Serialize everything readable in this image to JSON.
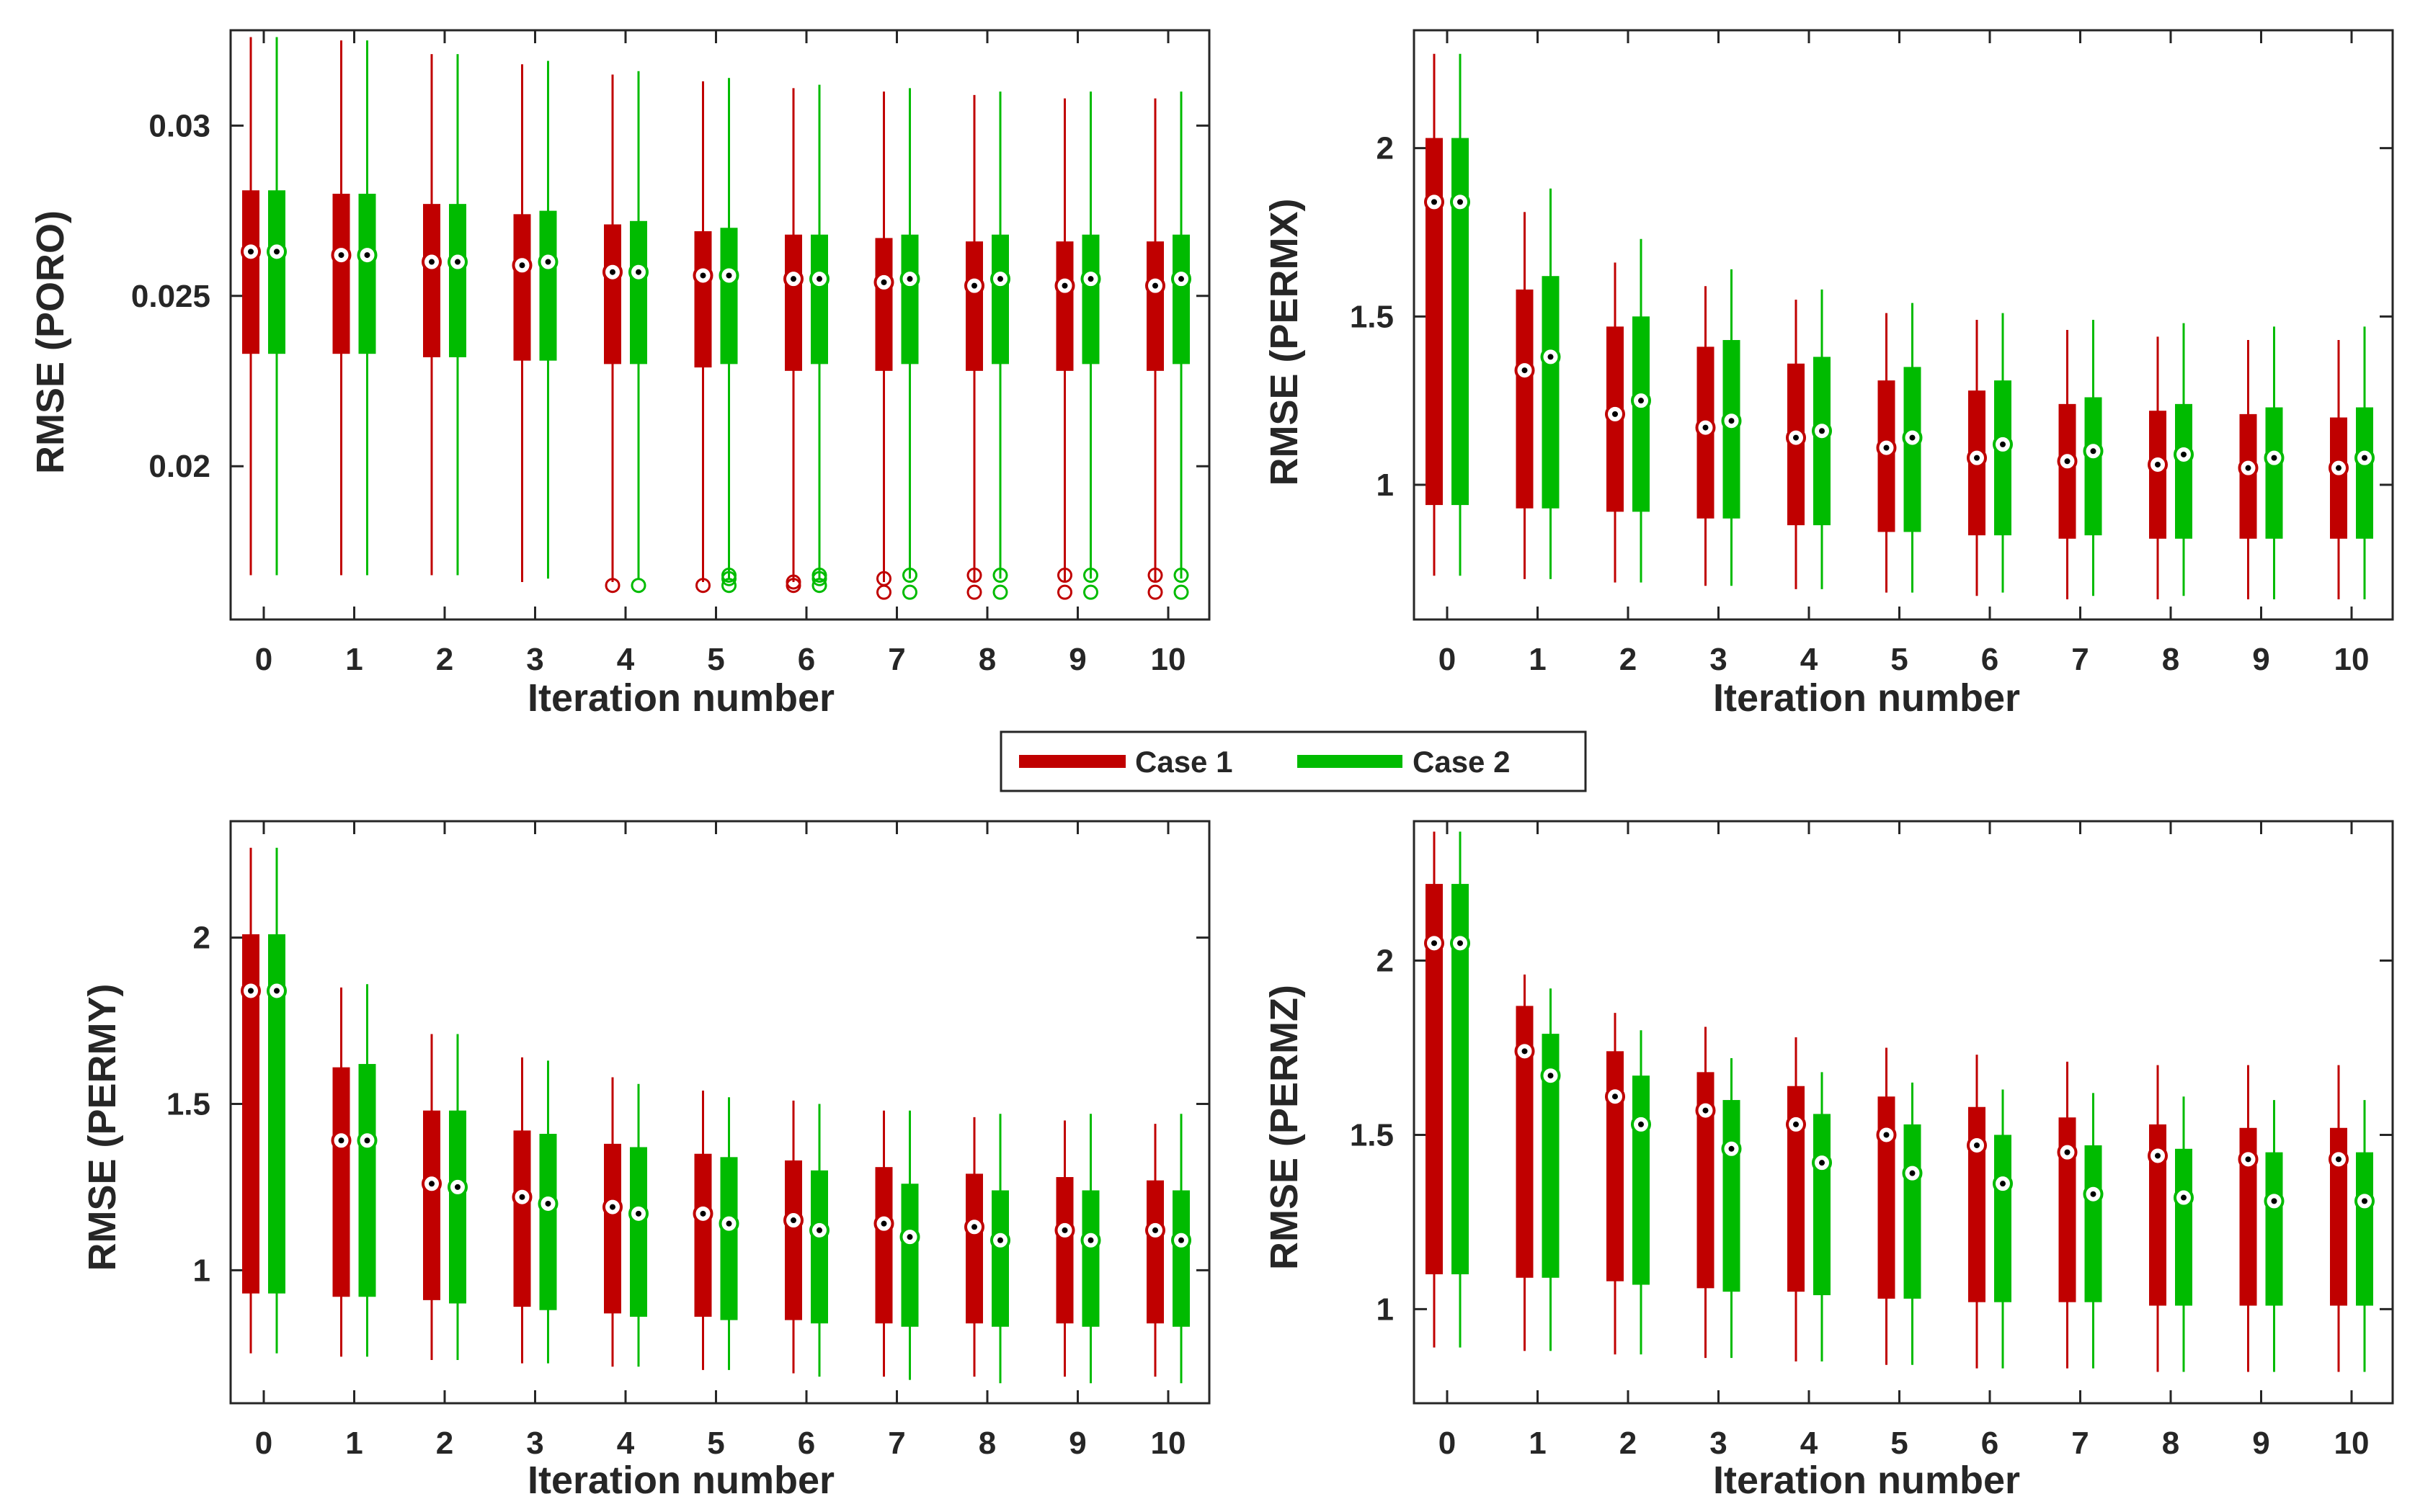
{
  "colors": {
    "case1": "#c00000",
    "case2": "#00bb00",
    "axis": "#262626",
    "median_fill": "#ffffff"
  },
  "legend": {
    "position": "center",
    "entries": [
      {
        "label": "Case 1",
        "color": "#c00000"
      },
      {
        "label": "Case 2",
        "color": "#00bb00"
      }
    ]
  },
  "chart_data": [
    {
      "type": "box",
      "title": "",
      "xlabel": "Iteration number",
      "ylabel": "RMSE (PORO)",
      "categories": [
        "0",
        "1",
        "2",
        "3",
        "4",
        "5",
        "6",
        "7",
        "8",
        "9",
        "10"
      ],
      "ylim": [
        0.0155,
        0.0328
      ],
      "yticks": [
        0.02,
        0.025,
        0.03
      ],
      "ytick_labels": [
        "0.02",
        "0.025",
        "0.03"
      ],
      "series": [
        {
          "name": "Case 1",
          "whisker_low": [
            0.0168,
            0.0168,
            0.0168,
            0.0166,
            0.0166,
            0.0166,
            0.0166,
            0.0166,
            0.0166,
            0.0166,
            0.0166
          ],
          "q1": [
            0.0233,
            0.0233,
            0.0232,
            0.0231,
            0.023,
            0.0229,
            0.0228,
            0.0228,
            0.0228,
            0.0228,
            0.0228
          ],
          "median": [
            0.0263,
            0.0262,
            0.026,
            0.0259,
            0.0257,
            0.0256,
            0.0255,
            0.0254,
            0.0253,
            0.0253,
            0.0253
          ],
          "q3": [
            0.0281,
            0.028,
            0.0277,
            0.0274,
            0.0271,
            0.0269,
            0.0268,
            0.0267,
            0.0266,
            0.0266,
            0.0266
          ],
          "whisker_high": [
            0.0326,
            0.0325,
            0.0321,
            0.0318,
            0.0315,
            0.0313,
            0.0311,
            0.031,
            0.0309,
            0.0308,
            0.0308
          ],
          "outliers": [
            [],
            [],
            [],
            [],
            [
              0.0165
            ],
            [
              0.0165
            ],
            [
              0.0165,
              0.0166
            ],
            [
              0.0163,
              0.0167
            ],
            [
              0.0163,
              0.0168
            ],
            [
              0.0163,
              0.0168
            ],
            [
              0.0163,
              0.0168
            ]
          ]
        },
        {
          "name": "Case 2",
          "whisker_low": [
            0.0168,
            0.0168,
            0.0168,
            0.0167,
            0.0167,
            0.0167,
            0.0167,
            0.0167,
            0.0167,
            0.0167,
            0.0167
          ],
          "q1": [
            0.0233,
            0.0233,
            0.0232,
            0.0231,
            0.023,
            0.023,
            0.023,
            0.023,
            0.023,
            0.023,
            0.023
          ],
          "median": [
            0.0263,
            0.0262,
            0.026,
            0.026,
            0.0257,
            0.0256,
            0.0255,
            0.0255,
            0.0255,
            0.0255,
            0.0255
          ],
          "q3": [
            0.0281,
            0.028,
            0.0277,
            0.0275,
            0.0272,
            0.027,
            0.0268,
            0.0268,
            0.0268,
            0.0268,
            0.0268
          ],
          "whisker_high": [
            0.0326,
            0.0325,
            0.0321,
            0.0319,
            0.0316,
            0.0314,
            0.0312,
            0.0311,
            0.031,
            0.031,
            0.031
          ],
          "outliers": [
            [],
            [],
            [],
            [],
            [
              0.0165
            ],
            [
              0.0165,
              0.0167,
              0.0168
            ],
            [
              0.0165,
              0.0167,
              0.0168
            ],
            [
              0.0163,
              0.0168
            ],
            [
              0.0163,
              0.0168
            ],
            [
              0.0163,
              0.0168
            ],
            [
              0.0163,
              0.0168
            ]
          ]
        }
      ]
    },
    {
      "type": "box",
      "title": "",
      "xlabel": "Iteration number",
      "ylabel": "RMSE (PERMX)",
      "categories": [
        "0",
        "1",
        "2",
        "3",
        "4",
        "5",
        "6",
        "7",
        "8",
        "9",
        "10"
      ],
      "ylim": [
        0.6,
        2.35
      ],
      "yticks": [
        1,
        1.5,
        2
      ],
      "ytick_labels": [
        "1",
        "1.5",
        "2"
      ],
      "series": [
        {
          "name": "Case 1",
          "whisker_low": [
            0.73,
            0.72,
            0.71,
            0.7,
            0.69,
            0.68,
            0.67,
            0.66,
            0.66,
            0.66,
            0.66
          ],
          "q1": [
            0.94,
            0.93,
            0.92,
            0.9,
            0.88,
            0.86,
            0.85,
            0.84,
            0.84,
            0.84,
            0.84
          ],
          "median": [
            1.84,
            1.34,
            1.21,
            1.17,
            1.14,
            1.11,
            1.08,
            1.07,
            1.06,
            1.05,
            1.05
          ],
          "q3": [
            2.03,
            1.58,
            1.47,
            1.41,
            1.36,
            1.31,
            1.28,
            1.24,
            1.22,
            1.21,
            1.2
          ],
          "whisker_high": [
            2.28,
            1.81,
            1.66,
            1.59,
            1.55,
            1.51,
            1.49,
            1.46,
            1.44,
            1.43,
            1.43
          ],
          "outliers": [
            [],
            [],
            [],
            [],
            [],
            [],
            [],
            [],
            [],
            [],
            []
          ]
        },
        {
          "name": "Case 2",
          "whisker_low": [
            0.73,
            0.72,
            0.71,
            0.7,
            0.69,
            0.68,
            0.68,
            0.67,
            0.67,
            0.66,
            0.66
          ],
          "q1": [
            0.94,
            0.93,
            0.92,
            0.9,
            0.88,
            0.86,
            0.85,
            0.85,
            0.84,
            0.84,
            0.84
          ],
          "median": [
            1.84,
            1.38,
            1.25,
            1.19,
            1.16,
            1.14,
            1.12,
            1.1,
            1.09,
            1.08,
            1.08
          ],
          "q3": [
            2.03,
            1.62,
            1.5,
            1.43,
            1.38,
            1.35,
            1.31,
            1.26,
            1.24,
            1.23,
            1.23
          ],
          "whisker_high": [
            2.28,
            1.88,
            1.73,
            1.64,
            1.58,
            1.54,
            1.51,
            1.49,
            1.48,
            1.47,
            1.47
          ],
          "outliers": [
            [],
            [],
            [],
            [],
            [],
            [],
            [],
            [],
            [],
            [],
            []
          ]
        }
      ]
    },
    {
      "type": "box",
      "title": "",
      "xlabel": "Iteration number",
      "ylabel": "RMSE (PERMY)",
      "categories": [
        "0",
        "1",
        "2",
        "3",
        "4",
        "5",
        "6",
        "7",
        "8",
        "9",
        "10"
      ],
      "ylim": [
        0.6,
        2.35
      ],
      "yticks": [
        1,
        1.5,
        2
      ],
      "ytick_labels": [
        "1",
        "1.5",
        "2"
      ],
      "series": [
        {
          "name": "Case 1",
          "whisker_low": [
            0.75,
            0.74,
            0.73,
            0.72,
            0.71,
            0.7,
            0.69,
            0.68,
            0.68,
            0.68,
            0.68
          ],
          "q1": [
            0.93,
            0.92,
            0.91,
            0.89,
            0.87,
            0.86,
            0.85,
            0.84,
            0.84,
            0.84,
            0.84
          ],
          "median": [
            1.84,
            1.39,
            1.26,
            1.22,
            1.19,
            1.17,
            1.15,
            1.14,
            1.13,
            1.12,
            1.12
          ],
          "q3": [
            2.01,
            1.61,
            1.48,
            1.42,
            1.38,
            1.35,
            1.33,
            1.31,
            1.29,
            1.28,
            1.27
          ],
          "whisker_high": [
            2.27,
            1.85,
            1.71,
            1.64,
            1.58,
            1.54,
            1.51,
            1.48,
            1.46,
            1.45,
            1.44
          ],
          "outliers": [
            [],
            [],
            [],
            [],
            [],
            [],
            [],
            [],
            [],
            [],
            []
          ]
        },
        {
          "name": "Case 2",
          "whisker_low": [
            0.75,
            0.74,
            0.73,
            0.72,
            0.71,
            0.7,
            0.68,
            0.67,
            0.66,
            0.66,
            0.66
          ],
          "q1": [
            0.93,
            0.92,
            0.9,
            0.88,
            0.86,
            0.85,
            0.84,
            0.83,
            0.83,
            0.83,
            0.83
          ],
          "median": [
            1.84,
            1.39,
            1.25,
            1.2,
            1.17,
            1.14,
            1.12,
            1.1,
            1.09,
            1.09,
            1.09
          ],
          "q3": [
            2.01,
            1.62,
            1.48,
            1.41,
            1.37,
            1.34,
            1.3,
            1.26,
            1.24,
            1.24,
            1.24
          ],
          "whisker_high": [
            2.27,
            1.86,
            1.71,
            1.63,
            1.56,
            1.52,
            1.5,
            1.48,
            1.47,
            1.47,
            1.47
          ],
          "outliers": [
            [],
            [],
            [],
            [],
            [],
            [],
            [],
            [],
            [],
            [],
            []
          ]
        }
      ]
    },
    {
      "type": "box",
      "title": "",
      "xlabel": "Iteration number",
      "ylabel": "RMSE (PERMZ)",
      "categories": [
        "0",
        "1",
        "2",
        "3",
        "4",
        "5",
        "6",
        "7",
        "8",
        "9",
        "10"
      ],
      "ylim": [
        0.73,
        2.4
      ],
      "yticks": [
        1,
        1.5,
        2
      ],
      "ytick_labels": [
        "1",
        "1.5",
        "2"
      ],
      "series": [
        {
          "name": "Case 1",
          "whisker_low": [
            0.89,
            0.88,
            0.87,
            0.86,
            0.85,
            0.84,
            0.83,
            0.83,
            0.82,
            0.82,
            0.82
          ],
          "q1": [
            1.1,
            1.09,
            1.08,
            1.06,
            1.05,
            1.03,
            1.02,
            1.02,
            1.01,
            1.01,
            1.01
          ],
          "median": [
            2.05,
            1.74,
            1.61,
            1.57,
            1.53,
            1.5,
            1.47,
            1.45,
            1.44,
            1.43,
            1.43
          ],
          "q3": [
            2.22,
            1.87,
            1.74,
            1.68,
            1.64,
            1.61,
            1.58,
            1.55,
            1.53,
            1.52,
            1.52
          ],
          "whisker_high": [
            2.37,
            1.96,
            1.85,
            1.81,
            1.78,
            1.75,
            1.73,
            1.71,
            1.7,
            1.7,
            1.7
          ],
          "outliers": [
            [],
            [],
            [],
            [],
            [],
            [],
            [],
            [],
            [],
            [],
            []
          ]
        },
        {
          "name": "Case 2",
          "whisker_low": [
            0.89,
            0.88,
            0.87,
            0.86,
            0.85,
            0.84,
            0.83,
            0.83,
            0.82,
            0.82,
            0.82
          ],
          "q1": [
            1.1,
            1.09,
            1.07,
            1.05,
            1.04,
            1.03,
            1.02,
            1.02,
            1.01,
            1.01,
            1.01
          ],
          "median": [
            2.05,
            1.67,
            1.53,
            1.46,
            1.42,
            1.39,
            1.36,
            1.33,
            1.32,
            1.31,
            1.31
          ],
          "q3": [
            2.22,
            1.79,
            1.67,
            1.6,
            1.56,
            1.53,
            1.5,
            1.47,
            1.46,
            1.45,
            1.45
          ],
          "whisker_high": [
            2.37,
            1.92,
            1.8,
            1.72,
            1.68,
            1.65,
            1.63,
            1.62,
            1.61,
            1.6,
            1.6
          ],
          "outliers": [
            [],
            [],
            [],
            [],
            [],
            [],
            [],
            [],
            [],
            [],
            []
          ]
        }
      ]
    }
  ]
}
